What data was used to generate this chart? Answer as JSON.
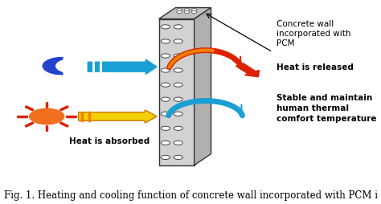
{
  "fig_width": 4.74,
  "fig_height": 2.55,
  "dpi": 100,
  "background_color": "#ffffff",
  "caption": "Fig. 1. Heating and cooling function of concrete wall incorporated with PCM i",
  "caption_fontsize": 8.5,
  "annotations": {
    "concrete_wall_label": "Concrete wall\nincorporated with\nPCM",
    "heat_released_label": "Heat is released",
    "stable_label": "Stable and maintain\nhuman thermal\ncomfort temperature",
    "heat_absorbed_label": "Heat is absorbed"
  },
  "colors": {
    "blue_arrow": "#1a9fd4",
    "red_arrow": "#dd2200",
    "yellow_arrow": "#f5d000",
    "orange_inner": "#f08000",
    "moon_blue": "#2244cc",
    "sun_orange": "#f07020",
    "sun_ray": "#dd2200",
    "wall_front": "#d2d2d2",
    "wall_top": "#c0c0c0",
    "wall_side": "#b0b0b0",
    "wall_border": "#333333",
    "circle_fill": "#ffffff",
    "circle_edge": "#444444"
  }
}
